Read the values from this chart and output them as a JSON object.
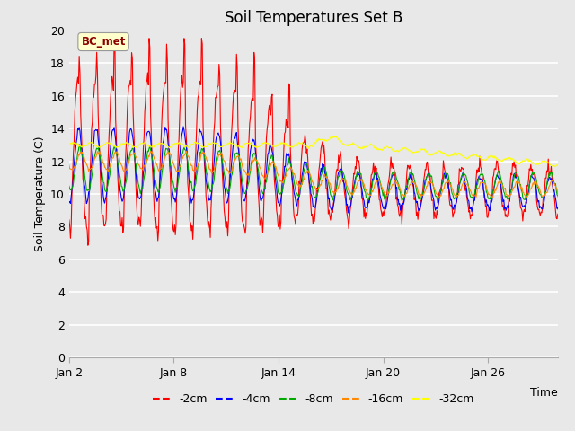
{
  "title": "Soil Temperatures Set B",
  "xlabel": "Time",
  "ylabel": "Soil Temperature (C)",
  "ylim": [
    0,
    20
  ],
  "yticks": [
    0,
    2,
    4,
    6,
    8,
    10,
    12,
    14,
    16,
    18,
    20
  ],
  "annotation": "BC_met",
  "series_colors": {
    "-2cm": "#ff0000",
    "-4cm": "#0000ff",
    "-8cm": "#00aa00",
    "-16cm": "#ff8800",
    "-32cm": "#ffff00"
  },
  "legend_labels": [
    "-2cm",
    "-4cm",
    "-8cm",
    "-16cm",
    "-32cm"
  ],
  "background_color": "#e8e8e8",
  "plot_bg_color": "#e8e8e8",
  "grid_color": "#ffffff",
  "title_fontsize": 12,
  "axis_fontsize": 9
}
